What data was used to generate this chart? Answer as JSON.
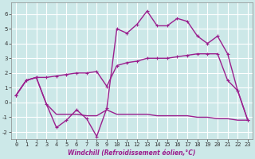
{
  "xlabel": "Windchill (Refroidissement éolien,°C)",
  "x": [
    0,
    1,
    2,
    3,
    4,
    5,
    6,
    7,
    8,
    9,
    10,
    11,
    12,
    13,
    14,
    15,
    16,
    17,
    18,
    19,
    20,
    21,
    22,
    23
  ],
  "line1": [
    0.5,
    1.5,
    1.7,
    1.7,
    1.8,
    1.9,
    2.0,
    2.0,
    2.1,
    1.1,
    2.5,
    2.7,
    2.8,
    3.0,
    3.0,
    3.0,
    3.1,
    3.2,
    3.3,
    3.3,
    3.3,
    1.5,
    0.8,
    -1.2
  ],
  "line2": [
    0.5,
    1.5,
    1.7,
    -0.1,
    -0.8,
    -0.8,
    -0.8,
    -0.9,
    -0.9,
    -0.5,
    -0.8,
    -0.8,
    -0.8,
    -0.8,
    -0.9,
    -0.9,
    -0.9,
    -0.9,
    -1.0,
    -1.0,
    -1.1,
    -1.1,
    -1.2,
    -1.2
  ],
  "line3": [
    0.5,
    1.5,
    1.7,
    -0.1,
    -1.7,
    -1.2,
    -0.5,
    -1.1,
    -2.3,
    -0.4,
    5.0,
    4.7,
    5.3,
    6.2,
    5.2,
    5.2,
    5.7,
    5.5,
    4.5,
    4.0,
    4.5,
    3.3,
    0.8,
    -1.2
  ],
  "line_color": "#9b1f8e",
  "bg_color": "#cce8e8",
  "grid_color": "#ffffff",
  "ylim": [
    -2.5,
    6.8
  ],
  "yticks": [
    -2,
    -1,
    0,
    1,
    2,
    3,
    4,
    5,
    6
  ],
  "xlim": [
    -0.5,
    23.5
  ],
  "xticks": [
    0,
    1,
    2,
    3,
    4,
    5,
    6,
    7,
    8,
    9,
    10,
    11,
    12,
    13,
    14,
    15,
    16,
    17,
    18,
    19,
    20,
    21,
    22,
    23
  ]
}
